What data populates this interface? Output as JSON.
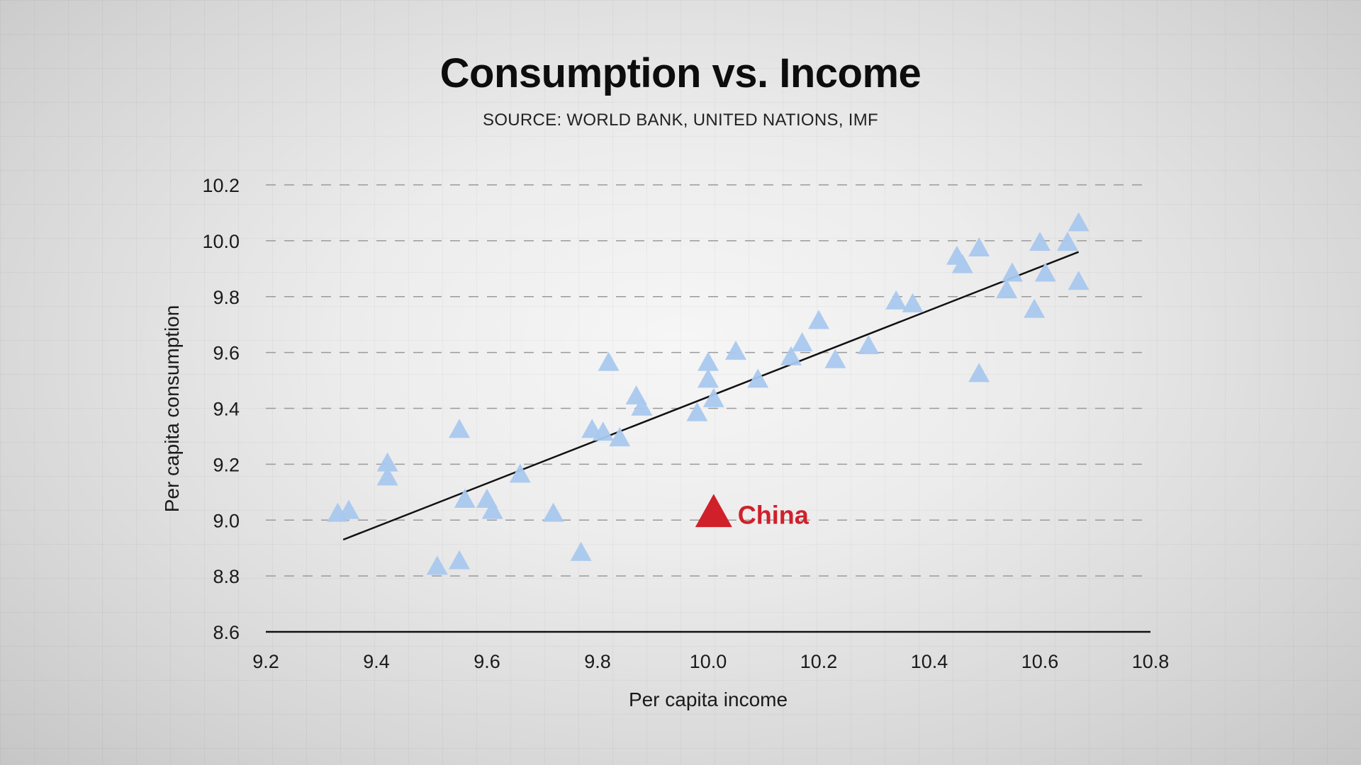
{
  "page": {
    "title": "Consumption vs. Income",
    "subtitle": "SOURCE: WORLD BANK, UNITED NATIONS, IMF"
  },
  "colors": {
    "point": "#a9c8ee",
    "highlight": "#d0202a",
    "trend": "#111111",
    "grid": "#9a9a9a"
  },
  "chart_data": {
    "type": "scatter",
    "title": "Consumption vs. Income",
    "subtitle": "SOURCE: WORLD BANK, UNITED NATIONS, IMF",
    "xlabel": "Per capita income",
    "ylabel": "Per capita consumption",
    "xlim": [
      9.2,
      10.8
    ],
    "ylim": [
      8.6,
      10.2
    ],
    "xticks": [
      "9.2",
      "9.4",
      "9.6",
      "9.8",
      "10.0",
      "10.2",
      "10.4",
      "10.6",
      "10.8"
    ],
    "yticks": [
      "8.6",
      "8.8",
      "9.0",
      "9.2",
      "9.4",
      "9.6",
      "9.8",
      "10.0",
      "10.2"
    ],
    "grid": "horizontal dashed",
    "marker": "triangle",
    "series": [
      {
        "points": [
          [
            9.33,
            9.02
          ],
          [
            9.35,
            9.03
          ],
          [
            9.42,
            9.2
          ],
          [
            9.42,
            9.15
          ],
          [
            9.51,
            8.83
          ],
          [
            9.55,
            8.85
          ],
          [
            9.55,
            9.32
          ],
          [
            9.56,
            9.07
          ],
          [
            9.6,
            9.07
          ],
          [
            9.61,
            9.03
          ],
          [
            9.66,
            9.16
          ],
          [
            9.72,
            9.02
          ],
          [
            9.77,
            8.88
          ],
          [
            9.79,
            9.32
          ],
          [
            9.81,
            9.31
          ],
          [
            9.82,
            9.56
          ],
          [
            9.84,
            9.29
          ],
          [
            9.87,
            9.44
          ],
          [
            9.88,
            9.4
          ],
          [
            9.98,
            9.38
          ],
          [
            10.0,
            9.56
          ],
          [
            10.0,
            9.5
          ],
          [
            10.01,
            9.43
          ],
          [
            10.05,
            9.6
          ],
          [
            10.09,
            9.5
          ],
          [
            10.15,
            9.58
          ],
          [
            10.17,
            9.63
          ],
          [
            10.2,
            9.71
          ],
          [
            10.23,
            9.57
          ],
          [
            10.29,
            9.62
          ],
          [
            10.34,
            9.78
          ],
          [
            10.37,
            9.77
          ],
          [
            10.45,
            9.94
          ],
          [
            10.46,
            9.91
          ],
          [
            10.49,
            9.97
          ],
          [
            10.49,
            9.52
          ],
          [
            10.54,
            9.82
          ],
          [
            10.55,
            9.88
          ],
          [
            10.59,
            9.75
          ],
          [
            10.6,
            9.99
          ],
          [
            10.61,
            9.88
          ],
          [
            10.65,
            9.99
          ],
          [
            10.67,
            9.85
          ],
          [
            10.67,
            10.06
          ]
        ]
      }
    ],
    "highlight": {
      "label": "China",
      "x": 10.01,
      "y": 9.02
    },
    "trendline": {
      "x": [
        9.34,
        10.67
      ],
      "y": [
        8.93,
        9.96
      ]
    }
  }
}
